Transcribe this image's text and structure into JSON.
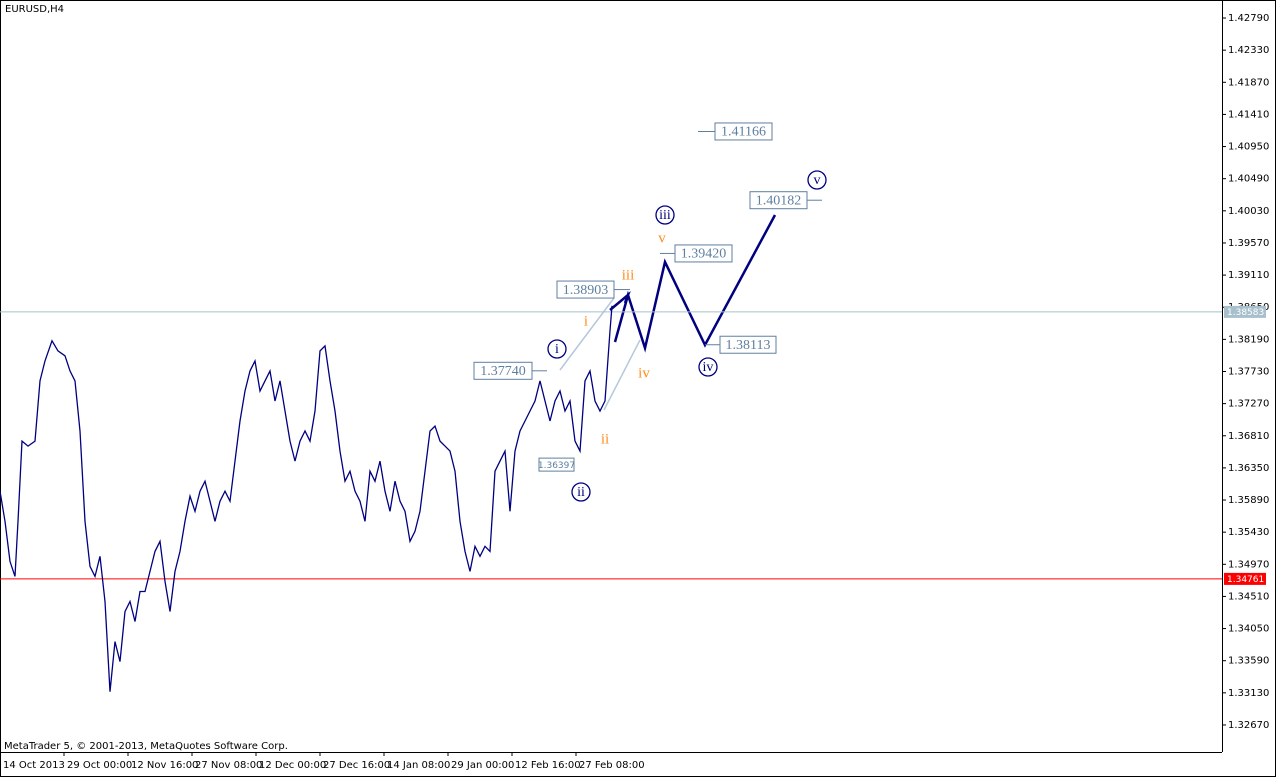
{
  "chart_data": {
    "type": "line",
    "title": "EURUSD,H4",
    "footer": "MetaTrader 5, © 2001-2013, MetaQuotes Software Corp.",
    "color": "#000080",
    "x": [
      0,
      5,
      10,
      15,
      18,
      22,
      28,
      35,
      40,
      45,
      52,
      58,
      65,
      70,
      75,
      80,
      85,
      90,
      95,
      100,
      105,
      110,
      115,
      120,
      125,
      130,
      135,
      140,
      145,
      150,
      155,
      160,
      165,
      170,
      175,
      180,
      185,
      190,
      195,
      200,
      205,
      210,
      215,
      220,
      225,
      230,
      235,
      240,
      245,
      250,
      255,
      260,
      265,
      270,
      275,
      280,
      285,
      290,
      295,
      300,
      305,
      310,
      315,
      320,
      325,
      330,
      335,
      340,
      345,
      350,
      355,
      360,
      365,
      370,
      375,
      380,
      385,
      390,
      395,
      400,
      405,
      410,
      415,
      420,
      425,
      430,
      435,
      440,
      445,
      450,
      455,
      460,
      465,
      470,
      475,
      480,
      485,
      490,
      495,
      500,
      505,
      510,
      515,
      520,
      525,
      530,
      535,
      540,
      545,
      550,
      555,
      560,
      565,
      570,
      575,
      580,
      585,
      590,
      595,
      600,
      605,
      610,
      612
    ],
    "values": [
      1.36017,
      1.35586,
      1.35012,
      1.34797,
      1.35586,
      1.36734,
      1.36662,
      1.36734,
      1.37595,
      1.37882,
      1.38169,
      1.38025,
      1.37954,
      1.37738,
      1.37595,
      1.36878,
      1.35586,
      1.3494,
      1.34797,
      1.35084,
      1.34438,
      1.33146,
      1.33864,
      1.33577,
      1.34294,
      1.34438,
      1.34151,
      1.34581,
      1.34581,
      1.34868,
      1.35155,
      1.35299,
      1.34725,
      1.34294,
      1.34868,
      1.35155,
      1.35586,
      1.35945,
      1.35729,
      1.36017,
      1.3616,
      1.35873,
      1.35586,
      1.35873,
      1.36017,
      1.35873,
      1.36447,
      1.37021,
      1.37451,
      1.37738,
      1.37882,
      1.37451,
      1.37595,
      1.37738,
      1.37308,
      1.37595,
      1.37164,
      1.36734,
      1.36447,
      1.36734,
      1.36878,
      1.36734,
      1.37164,
      1.38025,
      1.38097,
      1.37595,
      1.37164,
      1.3659,
      1.3616,
      1.36303,
      1.36017,
      1.35873,
      1.35586,
      1.36303,
      1.3616,
      1.36447,
      1.36017,
      1.35729,
      1.3616,
      1.35873,
      1.35729,
      1.35299,
      1.35442,
      1.35729,
      1.36303,
      1.36878,
      1.36949,
      1.36734,
      1.36662,
      1.3659,
      1.36303,
      1.35586,
      1.35155,
      1.34868,
      1.35227,
      1.35084,
      1.35227,
      1.35155,
      1.36303,
      1.36447,
      1.3659,
      1.35729,
      1.3659,
      1.36878,
      1.37021,
      1.37164,
      1.37308,
      1.37595,
      1.37308,
      1.37021,
      1.37308,
      1.37451,
      1.37164,
      1.37308,
      1.36734,
      1.3659,
      1.37595,
      1.37738,
      1.37308,
      1.37164,
      1.37308,
      1.38312,
      1.38671
    ],
    "xlim": [
      0,
      1222
    ],
    "xticks": [
      {
        "value": 0,
        "label": "14 Oct 2013"
      },
      {
        "value": 64,
        "label": "29 Oct 00:00"
      },
      {
        "value": 128,
        "label": "12 Nov 16:00"
      },
      {
        "value": 192,
        "label": "27 Nov 08:00"
      },
      {
        "value": 256,
        "label": "12 Dec 00:00"
      },
      {
        "value": 320,
        "label": "27 Dec 16:00"
      },
      {
        "value": 384,
        "label": "14 Jan 08:00"
      },
      {
        "value": 448,
        "label": "29 Jan 00:00"
      },
      {
        "value": 512,
        "label": "12 Feb 16:00"
      },
      {
        "value": 576,
        "label": "27 Feb 08:00"
      }
    ],
    "ylim": [
      1.32283,
      1.43048
    ],
    "yticks": [
      {
        "value": 1.4279,
        "label": "1.42790"
      },
      {
        "value": 1.4233,
        "label": "1.42330"
      },
      {
        "value": 1.4187,
        "label": "1.41870"
      },
      {
        "value": 1.4141,
        "label": "1.41410"
      },
      {
        "value": 1.4095,
        "label": "1.40950"
      },
      {
        "value": 1.4049,
        "label": "1.40490"
      },
      {
        "value": 1.4003,
        "label": "1.40030"
      },
      {
        "value": 1.3957,
        "label": "1.39570"
      },
      {
        "value": 1.3911,
        "label": "1.39110"
      },
      {
        "value": 1.3865,
        "label": "1.38650"
      },
      {
        "value": 1.3819,
        "label": "1.38190"
      },
      {
        "value": 1.3773,
        "label": "1.37730"
      },
      {
        "value": 1.3727,
        "label": "1.37270"
      },
      {
        "value": 1.3681,
        "label": "1.36810"
      },
      {
        "value": 1.3635,
        "label": "1.36350"
      },
      {
        "value": 1.3589,
        "label": "1.35890"
      },
      {
        "value": 1.3543,
        "label": "1.35430"
      },
      {
        "value": 1.3497,
        "label": "1.34970"
      },
      {
        "value": 1.3451,
        "label": "1.34510"
      },
      {
        "value": 1.3405,
        "label": "1.34050"
      },
      {
        "value": 1.3359,
        "label": "1.33590"
      },
      {
        "value": 1.3313,
        "label": "1.33130"
      },
      {
        "value": 1.3267,
        "label": "1.32670"
      }
    ],
    "hlines": [
      {
        "value": 1.38583,
        "label": "1.38583",
        "color": "#a8c0cc"
      },
      {
        "value": 1.34761,
        "label": "1.34761",
        "color": "#ff0000"
      }
    ],
    "levels": [
      {
        "value": 1.41166,
        "label": "1.41166"
      },
      {
        "value": 1.40182,
        "label": "1.40182"
      },
      {
        "value": 1.3942,
        "label": "1.39420"
      },
      {
        "value": 1.38903,
        "label": "1.38903"
      },
      {
        "value": 1.38113,
        "label": "1.38113"
      },
      {
        "value": 1.3774,
        "label": "1.37740"
      },
      {
        "value": 1.36397,
        "label": "1.36397"
      }
    ],
    "minor_waves": [
      "i",
      "ii",
      "iii",
      "iv",
      "v"
    ],
    "major_waves": [
      "i",
      "ii",
      "iii",
      "iv",
      "v"
    ]
  }
}
